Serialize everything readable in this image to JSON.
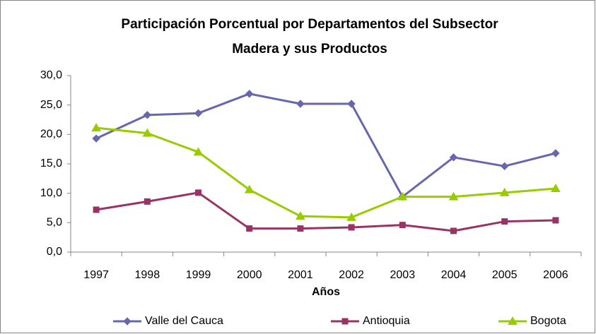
{
  "chart_data": {
    "type": "line",
    "title": [
      "Participación Porcentual por Departamentos del Subsector",
      "Madera y sus Productos"
    ],
    "x_label": "Años",
    "categories": [
      "1997",
      "1998",
      "1999",
      "2000",
      "2001",
      "2002",
      "2003",
      "2004",
      "2005",
      "2006"
    ],
    "series": [
      {
        "name": "Valle del Cauca",
        "color": "#6767ad",
        "marker": "diamond",
        "values": [
          19.3,
          23.3,
          23.6,
          26.9,
          25.2,
          25.2,
          9.4,
          16.1,
          14.6,
          16.8
        ]
      },
      {
        "name": "Antioquia",
        "color": "#993366",
        "marker": "square",
        "values": [
          7.2,
          8.6,
          10.1,
          4.0,
          4.0,
          4.2,
          4.6,
          3.6,
          5.2,
          5.4
        ]
      },
      {
        "name": "Bogota",
        "color": "#99cc00",
        "marker": "triangle",
        "values": [
          21.1,
          20.2,
          17.0,
          10.6,
          6.1,
          5.9,
          9.4,
          9.4,
          10.1,
          10.8
        ]
      }
    ],
    "ylim": [
      0,
      30
    ],
    "yticks": [
      {
        "value": 0,
        "label": "0,0"
      },
      {
        "value": 5,
        "label": "5,0"
      },
      {
        "value": 10,
        "label": "10,0"
      },
      {
        "value": 15,
        "label": "15,0"
      },
      {
        "value": 20,
        "label": "20,0"
      },
      {
        "value": 25,
        "label": "25,0"
      },
      {
        "value": 30,
        "label": "30,0"
      }
    ],
    "grid": false,
    "legend": "bottom"
  }
}
